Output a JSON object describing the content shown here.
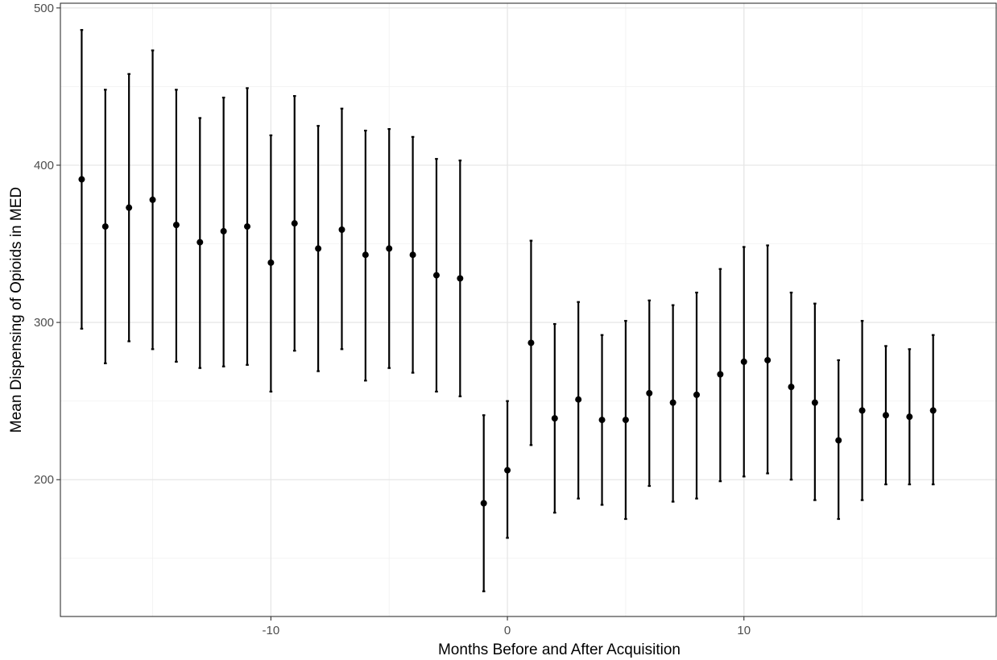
{
  "chart_data": {
    "type": "scatter",
    "subtype": "point-with-error-bars",
    "title": "",
    "xlabel": "Months Before and After Acquisition",
    "ylabel": "Mean Dispensing of Opioids in MED",
    "xlim": [
      -18.9,
      20.7
    ],
    "ylim": [
      113,
      503
    ],
    "x_ticks": [
      -10,
      0,
      10
    ],
    "y_ticks": [
      200,
      300,
      400,
      500
    ],
    "grid": true,
    "legend": "none",
    "series": [
      {
        "points": [
          {
            "x": -18,
            "y": 391,
            "lo": 296,
            "hi": 486
          },
          {
            "x": -17,
            "y": 361,
            "lo": 274,
            "hi": 448
          },
          {
            "x": -16,
            "y": 373,
            "lo": 288,
            "hi": 458
          },
          {
            "x": -15,
            "y": 378,
            "lo": 283,
            "hi": 473
          },
          {
            "x": -14,
            "y": 362,
            "lo": 275,
            "hi": 448
          },
          {
            "x": -13,
            "y": 351,
            "lo": 271,
            "hi": 430
          },
          {
            "x": -12,
            "y": 358,
            "lo": 272,
            "hi": 443
          },
          {
            "x": -11,
            "y": 361,
            "lo": 273,
            "hi": 449
          },
          {
            "x": -10,
            "y": 338,
            "lo": 256,
            "hi": 419
          },
          {
            "x": -9,
            "y": 363,
            "lo": 282,
            "hi": 444
          },
          {
            "x": -8,
            "y": 347,
            "lo": 269,
            "hi": 425
          },
          {
            "x": -7,
            "y": 359,
            "lo": 283,
            "hi": 436
          },
          {
            "x": -6,
            "y": 343,
            "lo": 263,
            "hi": 422
          },
          {
            "x": -5,
            "y": 347,
            "lo": 271,
            "hi": 423
          },
          {
            "x": -4,
            "y": 343,
            "lo": 268,
            "hi": 418
          },
          {
            "x": -3,
            "y": 330,
            "lo": 256,
            "hi": 404
          },
          {
            "x": -2,
            "y": 328,
            "lo": 253,
            "hi": 403
          },
          {
            "x": -1,
            "y": 185,
            "lo": 129,
            "hi": 241
          },
          {
            "x": 0,
            "y": 206,
            "lo": 163,
            "hi": 250
          },
          {
            "x": 1,
            "y": 287,
            "lo": 222,
            "hi": 352
          },
          {
            "x": 2,
            "y": 239,
            "lo": 179,
            "hi": 299
          },
          {
            "x": 3,
            "y": 251,
            "lo": 188,
            "hi": 313
          },
          {
            "x": 4,
            "y": 238,
            "lo": 184,
            "hi": 292
          },
          {
            "x": 5,
            "y": 238,
            "lo": 175,
            "hi": 301
          },
          {
            "x": 6,
            "y": 255,
            "lo": 196,
            "hi": 314
          },
          {
            "x": 7,
            "y": 249,
            "lo": 186,
            "hi": 311
          },
          {
            "x": 8,
            "y": 254,
            "lo": 188,
            "hi": 319
          },
          {
            "x": 9,
            "y": 267,
            "lo": 199,
            "hi": 334
          },
          {
            "x": 10,
            "y": 275,
            "lo": 202,
            "hi": 348
          },
          {
            "x": 11,
            "y": 276,
            "lo": 204,
            "hi": 349
          },
          {
            "x": 12,
            "y": 259,
            "lo": 200,
            "hi": 319
          },
          {
            "x": 13,
            "y": 249,
            "lo": 187,
            "hi": 312
          },
          {
            "x": 14,
            "y": 225,
            "lo": 175,
            "hi": 276
          },
          {
            "x": 15,
            "y": 244,
            "lo": 187,
            "hi": 301
          },
          {
            "x": 16,
            "y": 241,
            "lo": 197,
            "hi": 285
          },
          {
            "x": 17,
            "y": 240,
            "lo": 197,
            "hi": 283
          },
          {
            "x": 18,
            "y": 244,
            "lo": 197,
            "hi": 292
          }
        ]
      }
    ]
  }
}
